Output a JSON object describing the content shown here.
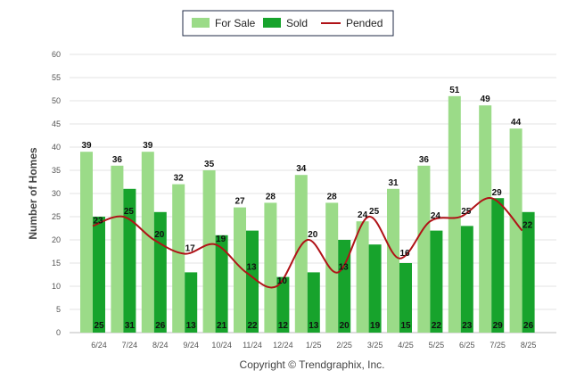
{
  "chart_data": {
    "type": "bar",
    "ylabel": "Number of Homes",
    "ylim": [
      0,
      60
    ],
    "yticks": [
      0,
      5,
      10,
      15,
      20,
      25,
      30,
      35,
      40,
      45,
      50,
      55,
      60
    ],
    "grid": true,
    "legend_position": "top-center",
    "categories": [
      "6/24",
      "7/24",
      "8/24",
      "9/24",
      "10/24",
      "11/24",
      "12/24",
      "1/25",
      "2/25",
      "3/25",
      "4/25",
      "5/25",
      "6/25",
      "7/25",
      "8/25"
    ],
    "series": [
      {
        "name": "For Sale",
        "type": "bar",
        "color": "#9bdb88",
        "values": [
          39,
          36,
          39,
          32,
          35,
          27,
          28,
          34,
          28,
          24,
          31,
          36,
          51,
          49,
          44
        ]
      },
      {
        "name": "Sold",
        "type": "bar",
        "color": "#17a32c",
        "values": [
          25,
          31,
          26,
          13,
          21,
          22,
          12,
          13,
          20,
          19,
          15,
          22,
          23,
          29,
          26
        ]
      },
      {
        "name": "Pended",
        "type": "line",
        "color": "#b01217",
        "values": [
          23,
          25,
          20,
          17,
          19,
          13,
          10,
          20,
          13,
          25,
          16,
          24,
          25,
          29,
          22
        ]
      }
    ]
  },
  "footer": {
    "credit": "Copyright © Trendgraphix, Inc."
  }
}
